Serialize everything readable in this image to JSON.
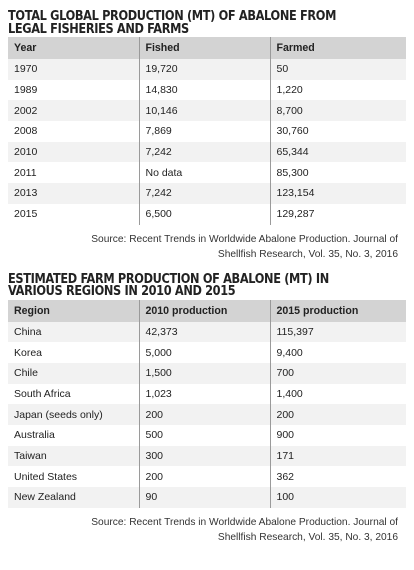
{
  "table1": {
    "title_line1": "TOTAL GLOBAL PRODUCTION (MT) OF ABALONE FROM",
    "title_line2": "LEGAL FISHERIES AND FARMS",
    "headers": [
      "Year",
      "Fished",
      "Farmed"
    ],
    "rows": [
      [
        "1970",
        "19,720",
        "50"
      ],
      [
        "1989",
        "14,830",
        "1,220"
      ],
      [
        "2002",
        "10,146",
        "8,700"
      ],
      [
        "2008",
        "7,869",
        "30,760"
      ],
      [
        "2010",
        "7,242",
        "65,344"
      ],
      [
        "2011",
        "No data",
        "85,300"
      ],
      [
        "2013",
        "7,242",
        "123,154"
      ],
      [
        "2015",
        "6,500",
        "129,287"
      ]
    ],
    "source_line1": "Source: Recent Trends in Worldwide Abalone Production. Journal of",
    "source_line2": "Shellfish Research, Vol. 35, No. 3, 2016"
  },
  "table2": {
    "title_line1": "ESTIMATED FARM PRODUCTION OF ABALONE (MT) IN",
    "title_line2": "VARIOUS REGIONS IN 2010 AND 2015",
    "headers": [
      "Region",
      "2010 production",
      "2015 production"
    ],
    "rows": [
      [
        "China",
        "42,373",
        "115,397"
      ],
      [
        "Korea",
        "5,000",
        "9,400"
      ],
      [
        "Chile",
        "1,500",
        "700"
      ],
      [
        "South Africa",
        "1,023",
        "1,400"
      ],
      [
        "Japan (seeds only)",
        "200",
        "200"
      ],
      [
        "Australia",
        "500",
        "900"
      ],
      [
        "Taiwan",
        "300",
        "171"
      ],
      [
        "United States",
        "200",
        "362"
      ],
      [
        "New Zealand",
        "90",
        "100"
      ]
    ],
    "source_line1": "Source: Recent Trends in Worldwide Abalone Production. Journal of",
    "source_line2": "Shellfish Research, Vol. 35, No. 3, 2016"
  }
}
